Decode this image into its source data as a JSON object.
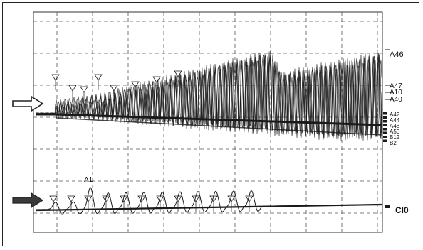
{
  "figure": {
    "channel_labels_upper": [
      "A46",
      "A47",
      "A10",
      "A40",
      "A42",
      "A44",
      "A48",
      "A50",
      "B12",
      "B2"
    ],
    "channel_label_lower_peak": "A1",
    "channel_label_lower_right": "Cl0",
    "arrows": [
      {
        "name": "upper-trace-arrow",
        "style": "outline"
      },
      {
        "name": "lower-trace-arrow",
        "style": "filled"
      }
    ]
  },
  "colors": {
    "trace": "#1a1a1a",
    "grid": "#555555",
    "frame": "#222222",
    "background": "#ffffff"
  }
}
